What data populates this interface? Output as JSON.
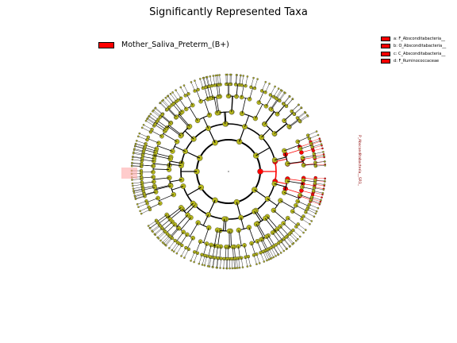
{
  "chart_data": {
    "type": "cladogram",
    "title": "Significantly Represented Taxa",
    "groups": [
      {
        "name": "Mother_Saliva_Preterm_(B+)",
        "color": "#ff0000"
      }
    ],
    "background_node_color": "#b5b61b",
    "highlighted_clades": [
      {
        "letter": "a",
        "taxon": "F_Absconditabacteria__",
        "group": "Mother_Saliva_Preterm_(B+)"
      },
      {
        "letter": "b",
        "taxon": "O_Absconditabacteria__",
        "group": "Mother_Saliva_Preterm_(B+)"
      },
      {
        "letter": "c",
        "taxon": "C_Absconditabacteria__",
        "group": "Mother_Saliva_Preterm_(B+)"
      },
      {
        "letter": "d",
        "taxon": "F_Ruminococcaceae",
        "group": "Mother_Saliva_Preterm_(B+)"
      }
    ],
    "clade_label": "P_Absconditabacteria__SR1_",
    "ring_levels": [
      "phylum",
      "class",
      "order",
      "family",
      "genus",
      "species"
    ]
  }
}
